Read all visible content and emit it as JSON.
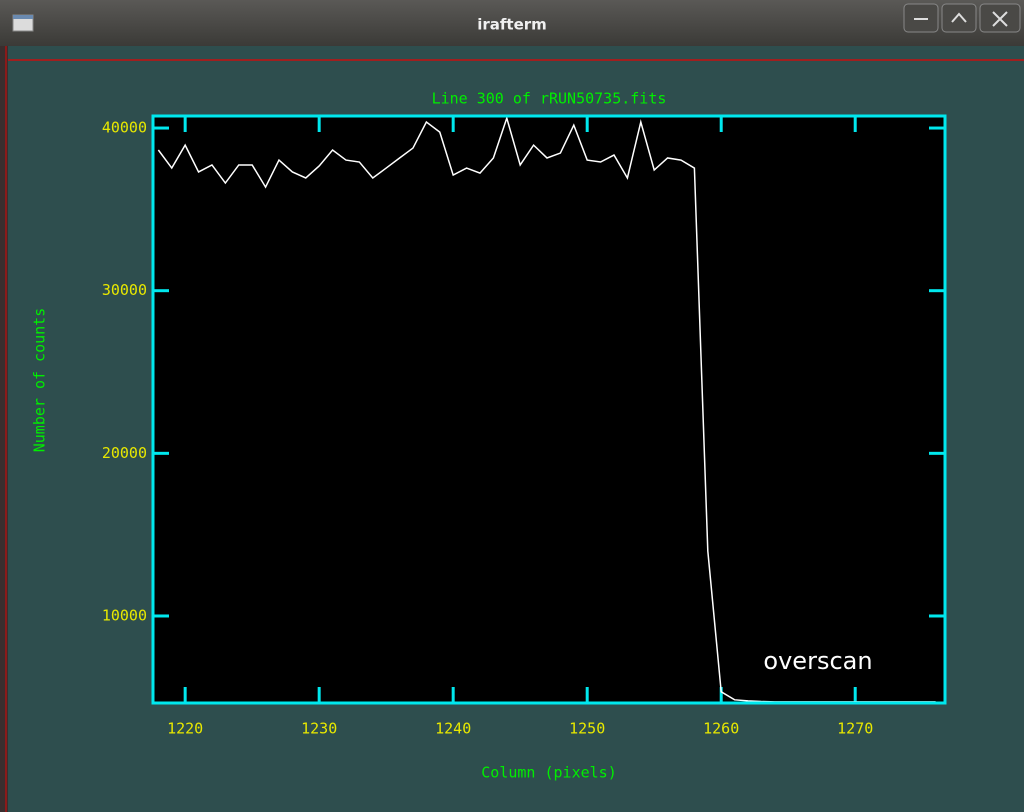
{
  "window": {
    "title": "irafterm"
  },
  "chart_data": {
    "type": "line",
    "title": "Line 300 of rRUN50735.fits",
    "xlabel": "Column (pixels)",
    "ylabel": "Number of counts",
    "annotation": "overscan",
    "x": [
      1218,
      1219,
      1220,
      1221,
      1222,
      1223,
      1224,
      1225,
      1226,
      1227,
      1228,
      1229,
      1230,
      1231,
      1232,
      1233,
      1234,
      1235,
      1236,
      1237,
      1238,
      1239,
      1240,
      1241,
      1242,
      1243,
      1244,
      1245,
      1246,
      1247,
      1248,
      1249,
      1250,
      1251,
      1252,
      1253,
      1254,
      1255,
      1256,
      1257,
      1258,
      1259,
      1260,
      1261,
      1262,
      1263,
      1264,
      1265,
      1266,
      1267,
      1268,
      1269,
      1270,
      1271,
      1272,
      1273,
      1274,
      1275,
      1276
    ],
    "values": [
      38650,
      37540,
      38950,
      37300,
      37730,
      36620,
      37730,
      37730,
      36370,
      38030,
      37300,
      36930,
      37670,
      38650,
      38030,
      37910,
      36930,
      37540,
      38160,
      38770,
      40370,
      39750,
      37110,
      37540,
      37230,
      38160,
      40610,
      37730,
      38950,
      38160,
      38460,
      40180,
      38030,
      37910,
      38340,
      36930,
      40370,
      37420,
      38160,
      38030,
      37540,
      14000,
      5340,
      4845,
      4780,
      4740,
      4720,
      4720,
      4720,
      4720,
      4720,
      4720,
      4720,
      4720,
      4720,
      4720,
      4720,
      4720,
      4720
    ],
    "color": "#ffffff",
    "xlim": [
      1217.6,
      1276.7
    ],
    "ylim": [
      4650,
      40740
    ],
    "xticks": [
      1220,
      1230,
      1240,
      1250,
      1260,
      1270
    ],
    "yticks": [
      10000,
      20000,
      30000,
      40000
    ]
  }
}
